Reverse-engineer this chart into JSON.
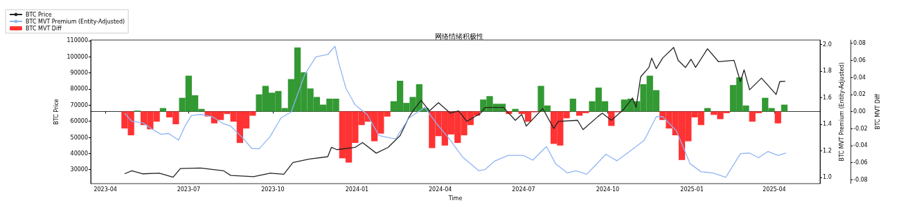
{
  "chart_data": {
    "type": "line",
    "title": "网络情绪积极性",
    "xlabel": "Time",
    "ylabel": "BTC Price",
    "y2label": "BTC MVT Premium (Entity-Adjusted)",
    "y3label": "BTC MVT Diff",
    "legend": "top left",
    "xlim": [
      "2023-03-16",
      "2025-05-21"
    ],
    "xticks": [
      "2023-04",
      "2023-07",
      "2023-10",
      "2024-01",
      "2024-04",
      "2024-07",
      "2024-10",
      "2025-01",
      "2025-04"
    ],
    "ylim": [
      21300,
      110400
    ],
    "yticks": [
      30000,
      40000,
      50000,
      60000,
      70000,
      80000,
      90000,
      100000,
      110000
    ],
    "y2lim": [
      0.952,
      2.033
    ],
    "y2ticks": [
      {
        "value": 1,
        "label": "1.0"
      },
      1.2,
      1.4,
      1.6,
      1.8,
      {
        "value": 2,
        "label": "2.0"
      }
    ],
    "y3lim": [
      -0.0847,
      0.0838
    ],
    "y3ticks": [
      -0.08,
      -0.06,
      -0.04,
      -0.02,
      {
        "value": 0,
        "label": "0.00"
      },
      0.02,
      0.04,
      0.06,
      0.08
    ],
    "series": [
      {
        "name": "BTC Price",
        "color": "#222222",
        "x": [
          "2023-04-22",
          "2023-04-30",
          "2023-05-12",
          "2023-05-30",
          "2023-06-14",
          "2023-06-22",
          "2023-07-14",
          "2023-08-08",
          "2023-08-16",
          "2023-09-10",
          "2023-09-28",
          "2023-10-13",
          "2023-10-23",
          "2023-11-10",
          "2023-11-30",
          "2023-12-04",
          "2023-12-10",
          "2023-12-30",
          "2024-01-07",
          "2024-01-22",
          "2024-02-04",
          "2024-02-17",
          "2024-02-27",
          "2024-03-03",
          "2024-03-11",
          "2024-03-20",
          "2024-03-30",
          "2024-04-12",
          "2024-04-21",
          "2024-04-30",
          "2024-05-15",
          "2024-05-20",
          "2024-06-09",
          "2024-06-22",
          "2024-06-29",
          "2024-07-04",
          "2024-07-22",
          "2024-08-03",
          "2024-08-08",
          "2024-08-29",
          "2024-09-04",
          "2024-09-20",
          "2024-09-25",
          "2024-10-05",
          "2024-10-18",
          "2024-10-28",
          "2024-11-01",
          "2024-11-06",
          "2024-11-15",
          "2024-11-18",
          "2024-11-23",
          "2024-11-30",
          "2024-12-12",
          "2024-12-17",
          "2024-12-25",
          "2024-12-31",
          "2025-01-05",
          "2025-01-18",
          "2025-01-30",
          "2025-02-16",
          "2025-02-23",
          "2025-02-27",
          "2025-03-05",
          "2025-03-18",
          "2025-04-03",
          "2025-04-07",
          "2025-04-13"
        ],
        "values": [
          27400,
          29300,
          27400,
          27800,
          25300,
          30700,
          31000,
          29300,
          26400,
          25600,
          27800,
          27100,
          34400,
          36600,
          38000,
          43800,
          42400,
          43800,
          46800,
          40200,
          43800,
          51100,
          62800,
          67100,
          73000,
          66400,
          71500,
          65000,
          66400,
          59900,
          65000,
          68600,
          68600,
          60600,
          64200,
          57000,
          67900,
          55500,
          59900,
          60600,
          54800,
          62800,
          65000,
          60600,
          67100,
          74400,
          68600,
          87600,
          93400,
          99200,
          92700,
          99200,
          105800,
          97800,
          93400,
          98500,
          93400,
          105000,
          97000,
          97800,
          84600,
          91900,
          79500,
          86800,
          76600,
          84600,
          84900
        ]
      },
      {
        "name": "BTC MVT Premium (Entity-Adjusted)",
        "axis": "y2",
        "color": "#8fb4f5",
        "x": [
          "2023-04-22",
          "2023-04-30",
          "2023-05-12",
          "2023-05-25",
          "2023-06-01",
          "2023-06-09",
          "2023-06-20",
          "2023-06-27",
          "2023-07-04",
          "2023-07-14",
          "2023-07-27",
          "2023-08-08",
          "2023-08-16",
          "2023-08-29",
          "2023-09-08",
          "2023-09-16",
          "2023-09-28",
          "2023-10-10",
          "2023-10-21",
          "2023-11-05",
          "2023-11-17",
          "2023-11-30",
          "2023-12-08",
          "2023-12-12",
          "2023-12-20",
          "2023-12-30",
          "2024-01-12",
          "2024-01-25",
          "2024-02-12",
          "2024-02-27",
          "2024-03-15",
          "2024-03-28",
          "2024-04-10",
          "2024-04-25",
          "2024-05-13",
          "2024-05-20",
          "2024-05-30",
          "2024-06-14",
          "2024-07-01",
          "2024-07-11",
          "2024-07-26",
          "2024-08-05",
          "2024-08-18",
          "2024-08-27",
          "2024-09-08",
          "2024-09-18",
          "2024-09-29",
          "2024-10-11",
          "2024-10-31",
          "2024-11-10",
          "2024-11-23",
          "2024-11-30",
          "2024-12-15",
          "2024-12-30",
          "2025-01-11",
          "2025-01-24",
          "2025-02-07",
          "2025-02-23",
          "2025-03-05",
          "2025-03-15",
          "2025-03-25",
          "2025-04-05",
          "2025-04-14"
        ],
        "values": [
          1.482,
          1.42,
          1.41,
          1.35,
          1.323,
          1.33,
          1.28,
          1.385,
          1.465,
          1.473,
          1.456,
          1.403,
          1.385,
          1.297,
          1.217,
          1.214,
          1.306,
          1.447,
          1.491,
          1.774,
          1.906,
          1.924,
          1.986,
          1.862,
          1.668,
          1.544,
          1.473,
          1.314,
          1.288,
          1.447,
          1.527,
          1.403,
          1.297,
          1.155,
          1.049,
          1.058,
          1.12,
          1.164,
          1.164,
          1.129,
          1.231,
          1.102,
          1.032,
          1.049,
          1.023,
          1.094,
          1.173,
          1.124,
          1.226,
          1.279,
          1.456,
          1.456,
          1.35,
          1.102,
          1.041,
          1.032,
          1.0,
          1.177,
          1.182,
          1.147,
          1.194,
          1.164,
          1.182
        ]
      },
      {
        "name": "BTC MVT Diff",
        "type": "bar",
        "axis": "y3",
        "color": "#ff3333",
        "x": [
          "2023-04-22",
          "2023-04-29",
          "2023-05-06",
          "2023-05-13",
          "2023-05-20",
          "2023-05-27",
          "2023-06-03",
          "2023-06-10",
          "2023-06-17",
          "2023-06-24",
          "2023-07-01",
          "2023-07-08",
          "2023-07-15",
          "2023-07-22",
          "2023-07-29",
          "2023-08-05",
          "2023-08-12",
          "2023-08-19",
          "2023-08-26",
          "2023-09-02",
          "2023-09-09",
          "2023-09-16",
          "2023-09-23",
          "2023-09-30",
          "2023-10-07",
          "2023-10-14",
          "2023-10-21",
          "2023-10-28",
          "2023-11-04",
          "2023-11-11",
          "2023-11-18",
          "2023-11-25",
          "2023-12-02",
          "2023-12-09",
          "2023-12-16",
          "2023-12-23",
          "2023-12-30",
          "2024-01-06",
          "2024-01-13",
          "2024-01-20",
          "2024-01-27",
          "2024-02-03",
          "2024-02-10",
          "2024-02-17",
          "2024-02-24",
          "2024-03-02",
          "2024-03-09",
          "2024-03-16",
          "2024-03-23",
          "2024-03-30",
          "2024-04-06",
          "2024-04-13",
          "2024-04-20",
          "2024-04-27",
          "2024-05-04",
          "2024-05-11",
          "2024-05-18",
          "2024-05-25",
          "2024-06-01",
          "2024-06-08",
          "2024-06-15",
          "2024-06-22",
          "2024-06-29",
          "2024-07-06",
          "2024-07-13",
          "2024-07-20",
          "2024-07-27",
          "2024-08-03",
          "2024-08-10",
          "2024-08-17",
          "2024-08-24",
          "2024-08-31",
          "2024-09-07",
          "2024-09-14",
          "2024-09-21",
          "2024-09-28",
          "2024-10-05",
          "2024-10-12",
          "2024-10-19",
          "2024-10-26",
          "2024-11-02",
          "2024-11-09",
          "2024-11-16",
          "2024-11-23",
          "2024-11-30",
          "2024-12-07",
          "2024-12-14",
          "2024-12-21",
          "2024-12-28",
          "2025-01-04",
          "2025-01-11",
          "2025-01-18",
          "2025-01-25",
          "2025-02-01",
          "2025-02-08",
          "2025-02-15",
          "2025-02-22",
          "2025-03-01",
          "2025-03-08",
          "2025-03-15",
          "2025-03-22",
          "2025-03-29",
          "2025-04-05",
          "2025-04-12"
        ],
        "values": [
          -0.02,
          -0.028,
          0.001,
          -0.016,
          -0.021,
          -0.012,
          0.004,
          -0.007,
          -0.015,
          0.016,
          0.042,
          0.019,
          0.003,
          -0.006,
          -0.014,
          -0.01,
          -0.003,
          -0.012,
          -0.037,
          -0.02,
          -0.005,
          0.02,
          0.03,
          0.022,
          0.024,
          0.004,
          0.038,
          0.075,
          0.046,
          0.027,
          0.017,
          0.008,
          0.015,
          0.015,
          -0.055,
          -0.06,
          -0.037,
          -0.016,
          -0.012,
          -0.035,
          -0.026,
          -0.006,
          0.012,
          0.036,
          0.01,
          0.017,
          0.032,
          0.004,
          -0.043,
          -0.029,
          -0.04,
          -0.027,
          -0.037,
          -0.028,
          -0.016,
          -0.005,
          0.014,
          0.018,
          0.009,
          0.009,
          -0.003,
          0.003,
          -0.003,
          -0.012,
          -0.001,
          0.03,
          0.007,
          -0.038,
          -0.04,
          -0.008,
          0.015,
          -0.005,
          -0.002,
          0.012,
          0.028,
          0.012,
          -0.017,
          -0.001,
          0.014,
          0.015,
          0.012,
          0.032,
          0.042,
          0.025,
          -0.01,
          -0.02,
          -0.028,
          -0.057,
          -0.035,
          -0.007,
          -0.016,
          0.004,
          -0.004,
          -0.009,
          -0.002,
          0.031,
          0.04,
          0.007,
          -0.012,
          -0.002,
          0.016,
          0.004,
          -0.014,
          0.008
        ],
        "colors": [
          "#ff3333",
          "#ff3333",
          "#339933",
          "#ff3333",
          "#ff3333",
          "#ff3333",
          "#339933",
          "#ff3333",
          "#ff3333",
          "#339933",
          "#339933",
          "#339933",
          "#339933",
          "#ff3333",
          "#ff3333",
          "#ff3333",
          "#ff3333",
          "#ff3333",
          "#ff3333",
          "#ff3333",
          "#ff3333",
          "#339933",
          "#339933",
          "#339933",
          "#339933",
          "#339933",
          "#339933",
          "#339933",
          "#339933",
          "#339933",
          "#339933",
          "#339933",
          "#339933",
          "#339933",
          "#ff3333",
          "#ff3333",
          "#ff3333",
          "#ff3333",
          "#ff3333",
          "#ff3333",
          "#ff3333",
          "#ff3333",
          "#339933",
          "#339933",
          "#339933",
          "#339933",
          "#339933",
          "#339933",
          "#ff3333",
          "#ff3333",
          "#ff3333",
          "#ff3333",
          "#ff3333",
          "#ff3333",
          "#ff3333",
          "#ff3333",
          "#339933",
          "#339933",
          "#339933",
          "#339933",
          "#ff3333",
          "#339933",
          "#ff3333",
          "#ff3333",
          "#ff3333",
          "#339933",
          "#339933",
          "#ff3333",
          "#ff3333",
          "#ff3333",
          "#339933",
          "#ff3333",
          "#ff3333",
          "#339933",
          "#339933",
          "#339933",
          "#ff3333",
          "#ff3333",
          "#339933",
          "#339933",
          "#339933",
          "#339933",
          "#339933",
          "#339933",
          "#ff3333",
          "#ff3333",
          "#ff3333",
          "#ff3333",
          "#ff3333",
          "#ff3333",
          "#ff3333",
          "#339933",
          "#ff3333",
          "#ff3333",
          "#ff3333",
          "#339933",
          "#339933",
          "#339933",
          "#ff3333",
          "#ff3333",
          "#339933",
          "#339933",
          "#ff3333",
          "#339933"
        ]
      }
    ]
  }
}
